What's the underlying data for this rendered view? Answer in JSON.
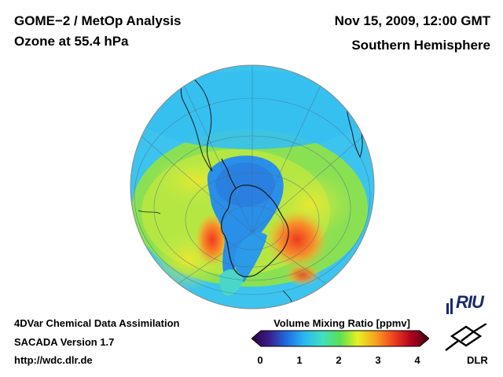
{
  "header": {
    "left_line1": "GOME−2 / MetOp Analysis",
    "left_line2": "Ozone at 55.4 hPa",
    "right_line1": "Nov 15, 2009, 12:00 GMT",
    "right_line2": "Southern Hemisphere"
  },
  "footer": {
    "line1": "4DVar Chemical Data Assimilation",
    "line2": "SACADA Version 1.7",
    "line3": "http://wdc.dlr.de"
  },
  "colorbar": {
    "title": "Volume Mixing Ratio [ppmv]",
    "min": 0,
    "max": 4,
    "ticks": [
      "0",
      "1",
      "2",
      "3",
      "4"
    ],
    "stops": [
      "#2a0040",
      "#3b1e8c",
      "#1f6fe0",
      "#2ab8f0",
      "#40e0c0",
      "#5ce050",
      "#e8f020",
      "#f7a020",
      "#f04020",
      "#b00020",
      "#3a0010"
    ]
  },
  "map": {
    "projection": "orthographic-south-pole",
    "ozone_hole_color": "#2a8fe8",
    "background_ring_color": "#3fc6f0",
    "collar_color": "#9fe23a",
    "maxima_color": "#f25a20"
  },
  "logos": {
    "riu_text": "RIU",
    "dlr_text": "DLR"
  }
}
